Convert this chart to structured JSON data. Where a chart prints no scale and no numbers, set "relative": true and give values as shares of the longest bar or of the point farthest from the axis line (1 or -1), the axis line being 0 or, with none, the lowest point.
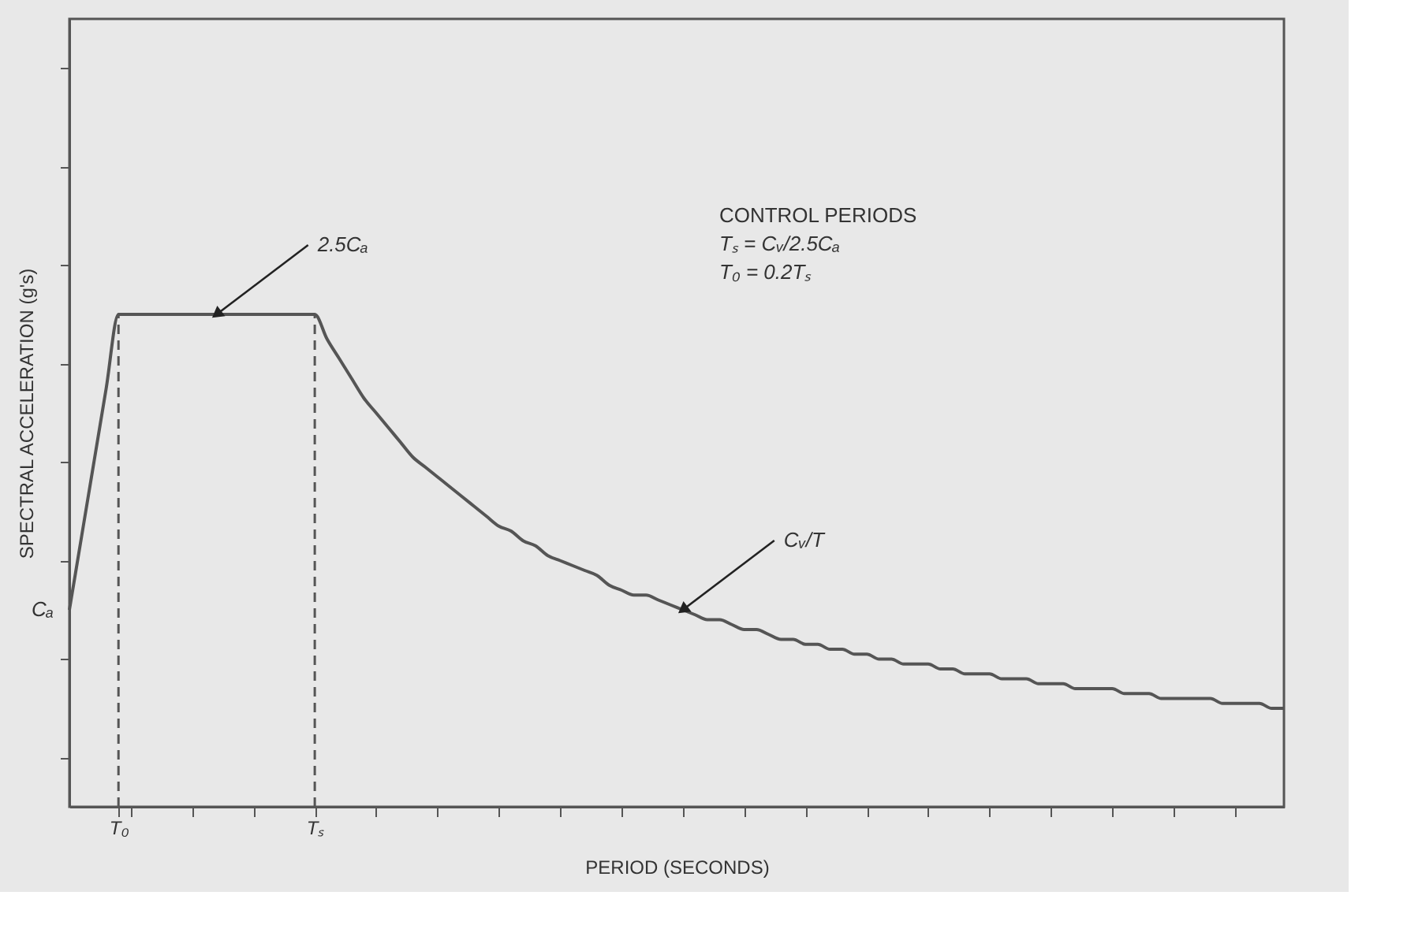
{
  "chart_data": {
    "type": "line",
    "relative": true,
    "xlabel": "PERIOD (SECONDS)",
    "ylabel": "SPECTRAL ACCELERATION (g's)",
    "categories": [
      null,
      null,
      null,
      null,
      "T₀",
      null,
      null,
      null,
      null,
      null,
      null,
      null,
      null,
      null,
      null,
      null,
      null,
      null,
      null,
      null,
      "Tₛ",
      null,
      null,
      null,
      null,
      null,
      null,
      null,
      null,
      null,
      null,
      null,
      null,
      null,
      null,
      null,
      null,
      null,
      null,
      null,
      null,
      null,
      null,
      null,
      null,
      null,
      null,
      null,
      null,
      null,
      null,
      null,
      null,
      null,
      null,
      null,
      null,
      null,
      null,
      null,
      null,
      null,
      null,
      null,
      null,
      null,
      null,
      null,
      null,
      null,
      null,
      null,
      null,
      null,
      null,
      null,
      null,
      null,
      null,
      null,
      null,
      null,
      null,
      null,
      null,
      null,
      null,
      null,
      null,
      null,
      null,
      null,
      null,
      null,
      null,
      null,
      null,
      null,
      null,
      null
    ],
    "series": [
      {
        "color": "#555555",
        "values": [
          0.4,
          0.55,
          0.7,
          0.85,
          1,
          1,
          1,
          1,
          1,
          1,
          1,
          1,
          1,
          1,
          1,
          1,
          1,
          1,
          1,
          1,
          1,
          0.95,
          0.91,
          0.87,
          0.83,
          0.8,
          0.77,
          0.74,
          0.71,
          0.69,
          0.67,
          0.65,
          0.63,
          0.61,
          0.59,
          0.57,
          0.56,
          0.54,
          0.53,
          0.51,
          0.5,
          0.49,
          0.48,
          0.47,
          0.45,
          0.44,
          0.43,
          0.43,
          0.42,
          0.41,
          0.4,
          0.39,
          0.38,
          0.38,
          0.37,
          0.36,
          0.36,
          0.35,
          0.34,
          0.34,
          0.33,
          0.33,
          0.32,
          0.32,
          0.31,
          0.31,
          0.3,
          0.3,
          0.29,
          0.29,
          0.29,
          0.28,
          0.28,
          0.27,
          0.27,
          0.27,
          0.26,
          0.26,
          0.26,
          0.25,
          0.25,
          0.25,
          0.24,
          0.24,
          0.24,
          0.24,
          0.23,
          0.23,
          0.23,
          0.22,
          0.22,
          0.22,
          0.22,
          0.22,
          0.21,
          0.21,
          0.21,
          0.21,
          0.2,
          0.2
        ]
      }
    ],
    "ref_lines": [
      {
        "axis": "x",
        "value": "T₀",
        "line_style": "dashed",
        "color": "#555555"
      },
      {
        "axis": "x",
        "value": "Tₛ",
        "line_style": "dashed",
        "color": "#555555"
      }
    ],
    "annotations": [
      "2.5Cₐ",
      "Cᵥ/T",
      "Cₐ",
      "CONTROL PERIODS",
      "Tₛ = Cᵥ/2.5Cₐ",
      "T₀ = 0.2Tₛ"
    ],
    "grid": false,
    "marker": "none",
    "line_style": "solid"
  }
}
